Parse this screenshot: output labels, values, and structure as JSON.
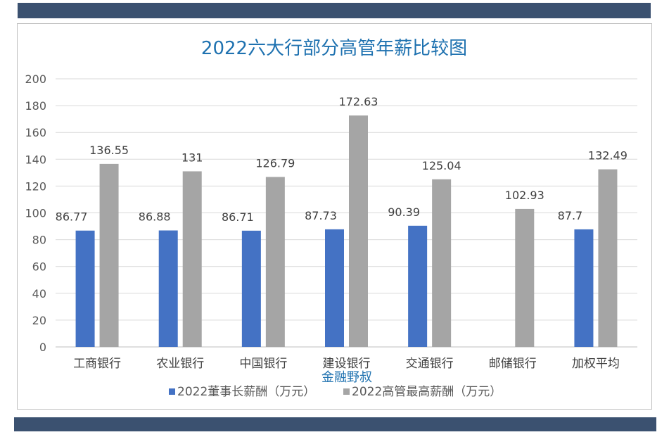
{
  "chart_data": {
    "type": "bar",
    "title": "2022六大行部分高管年薪比较图",
    "xlabel": "",
    "ylabel": "",
    "ylim": [
      0,
      200
    ],
    "yticks": [
      0,
      20,
      40,
      60,
      80,
      100,
      120,
      140,
      160,
      180,
      200
    ],
    "grid": true,
    "legend_position": "bottom",
    "categories": [
      "工商银行",
      "农业银行",
      "中国银行",
      "建设银行",
      "交通银行",
      "邮储银行",
      "加权平均"
    ],
    "series": [
      {
        "name": "2022董事长薪酬（万元）",
        "color": "#4472c4",
        "values": [
          86.77,
          86.88,
          86.71,
          87.73,
          90.39,
          null,
          87.7
        ]
      },
      {
        "name": "2022高管最高薪酬（万元）",
        "color": "#a5a5a5",
        "values": [
          136.55,
          131,
          126.79,
          172.63,
          125.04,
          102.93,
          132.49
        ]
      }
    ]
  },
  "watermark": "金融野叔",
  "colors": {
    "band": "#3b5170",
    "grid": "#d9d9d9",
    "title": "#1f72b0"
  }
}
